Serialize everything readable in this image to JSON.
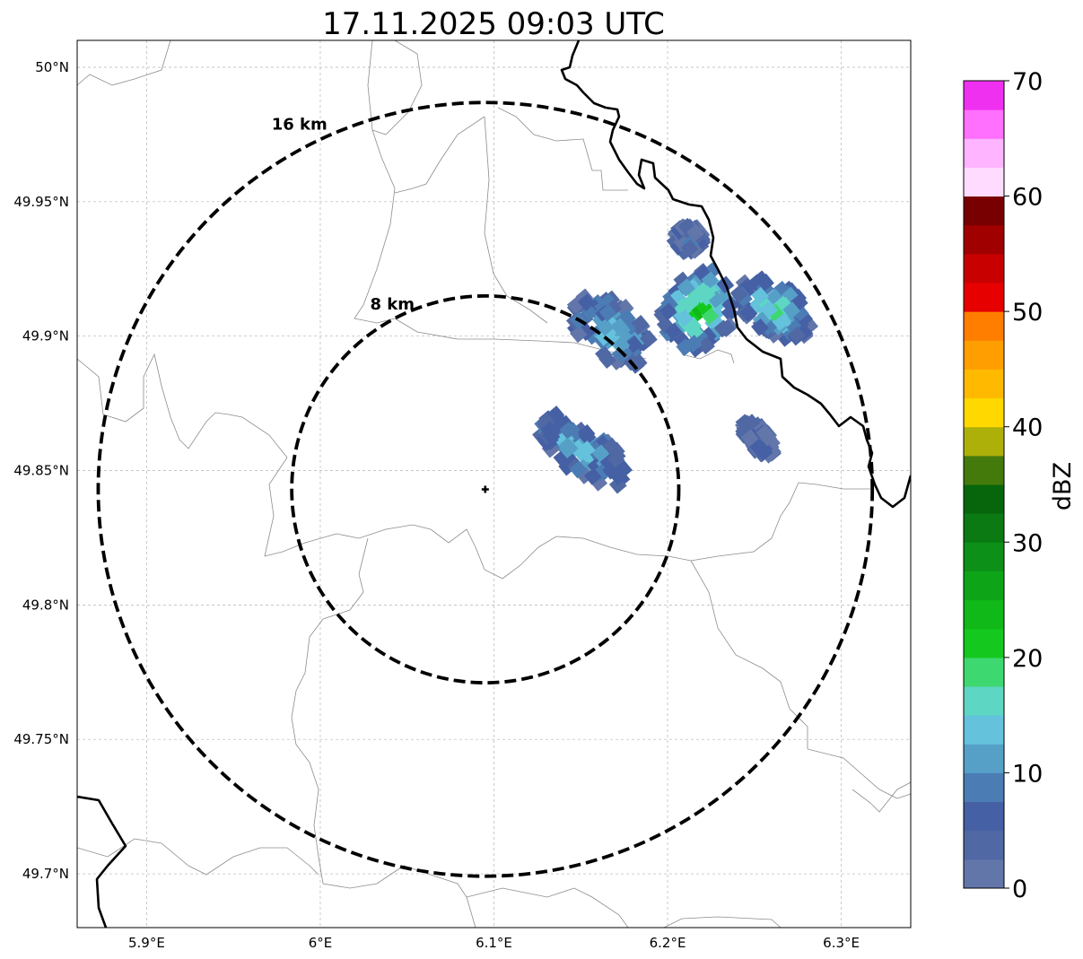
{
  "title": "17.11.2025 09:03 UTC",
  "x_ticks": [
    "5.9°E",
    "6°E",
    "6.1°E",
    "6.2°E",
    "6.3°E"
  ],
  "y_ticks": [
    "50°N",
    "49.95°N",
    "49.9°N",
    "49.85°N",
    "49.8°N",
    "49.75°N",
    "49.7°N"
  ],
  "map": {
    "lon_range": [
      5.86,
      6.34
    ],
    "lat_range": [
      49.68,
      50.01
    ],
    "radar_site": {
      "lon": 6.095,
      "lat": 49.843
    },
    "range_rings": [
      {
        "label": "8 km",
        "radius_km": 8
      },
      {
        "label": "16 km",
        "radius_km": 16
      }
    ],
    "gridlines": true
  },
  "colorbar": {
    "label": "dBZ",
    "ticks": [
      "0",
      "10",
      "20",
      "30",
      "40",
      "50",
      "60",
      "70"
    ],
    "range": [
      0,
      70
    ],
    "step": 2.5,
    "colors": [
      "#6276aa",
      "#5068a4",
      "#4560a4",
      "#4c7cb4",
      "#56a0c8",
      "#64c2dc",
      "#5ed6c4",
      "#3ed870",
      "#14c81e",
      "#10b818",
      "#0ea418",
      "#0c9018",
      "#0b7a12",
      "#07660c",
      "#447a0c",
      "#aeb00a",
      "#ffd800",
      "#ffba00",
      "#ff9e00",
      "#ff7e00",
      "#e60000",
      "#c80000",
      "#a00000",
      "#780000",
      "#ffdcff",
      "#ffb4ff",
      "#ff70ff",
      "#f030f0"
    ]
  }
}
